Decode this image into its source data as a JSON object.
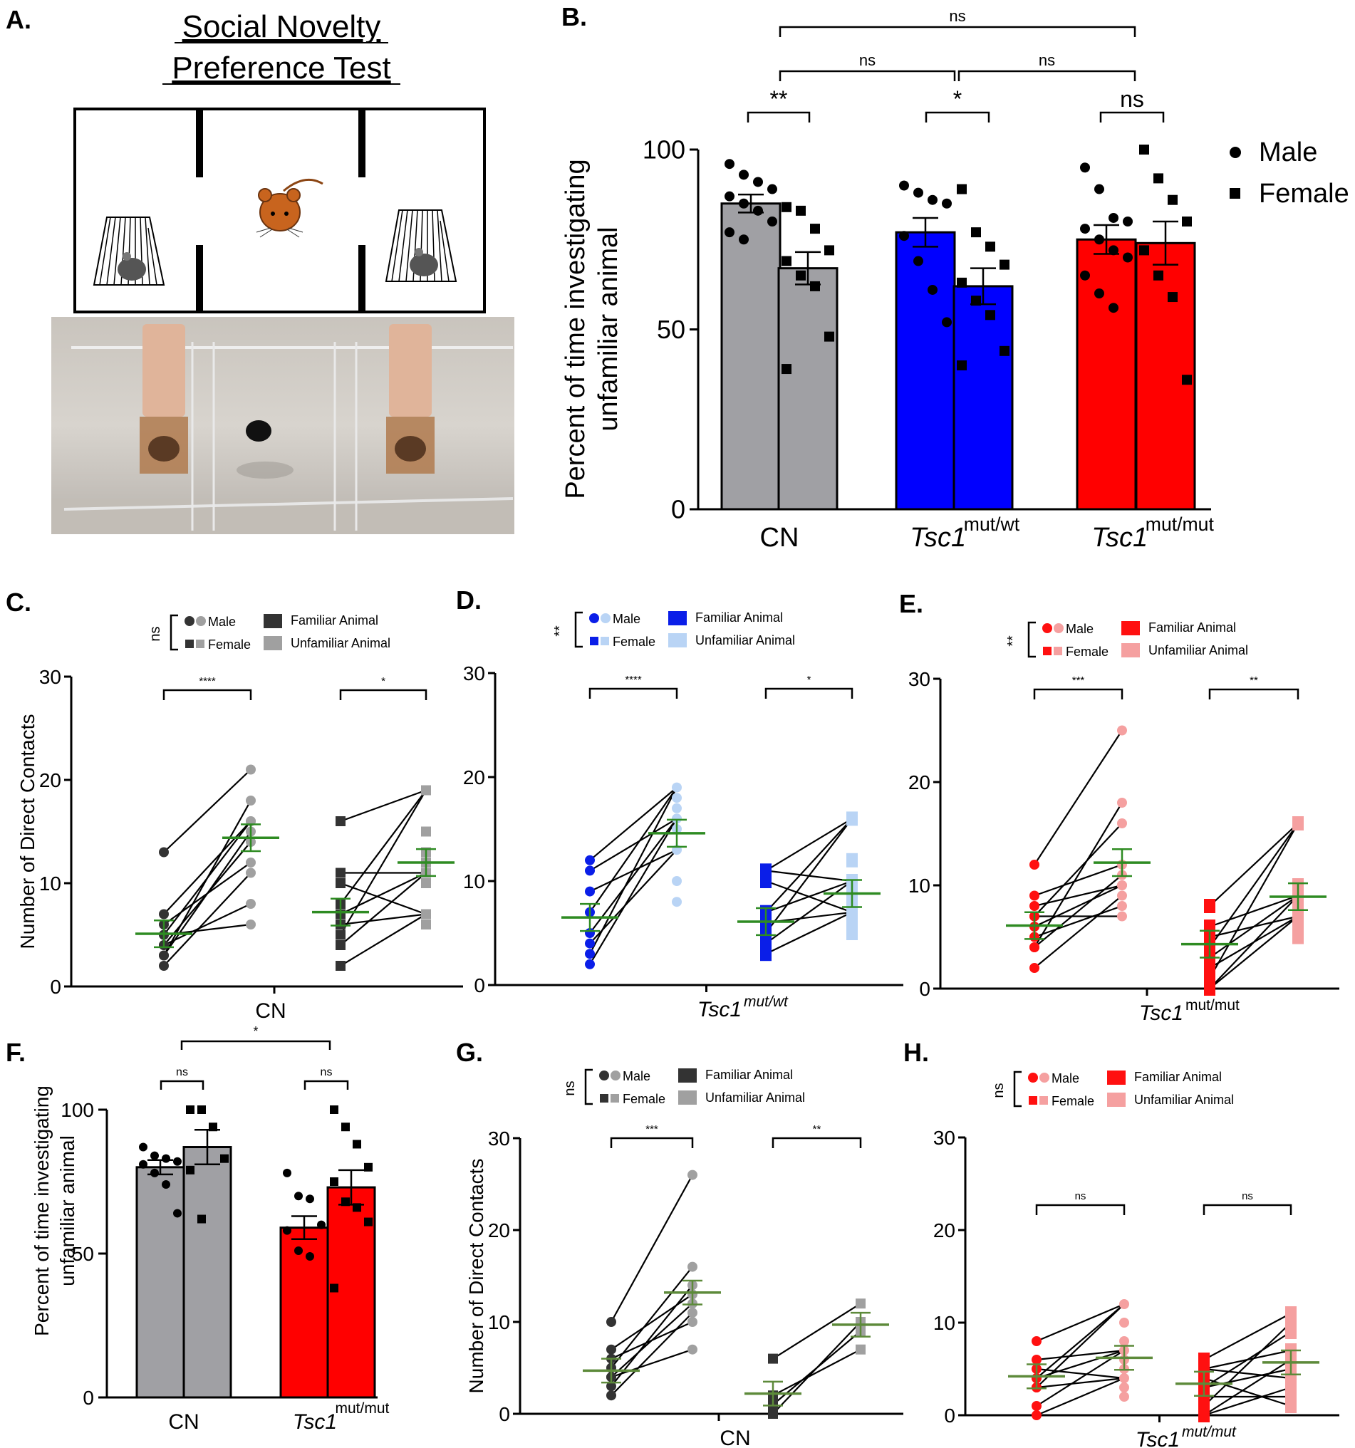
{
  "panel_labels": [
    "A.",
    "B.",
    "C.",
    "D.",
    "E.",
    "F.",
    "G.",
    "H."
  ],
  "panel_a": {
    "title_line1": "Social Novelty",
    "title_line2": "Preference Test"
  },
  "colors": {
    "cn_dark": "#333333",
    "cn_light": "#a0a0a0",
    "cn_bar": "#a0a0a4",
    "het_dark": "#0a1ee8",
    "het_light": "#b9d4f5",
    "het_bar": "#0000ff",
    "mut_dark": "#ff1010",
    "mut_light": "#f5a0a0",
    "mut_bar": "#ff0000",
    "mean": "#2e8b22",
    "mean_dim": "#5d8a3a"
  },
  "chart_data": [
    {
      "id": "B",
      "type": "bar",
      "ylabel_line1": "Percent of time investigating",
      "ylabel_line2": "unfamiliar animal",
      "ylim": [
        0,
        100
      ],
      "yticks": [
        "0",
        "50",
        "100"
      ],
      "groups": [
        {
          "label": "CN",
          "sup": ""
        },
        {
          "label": "Tsc1",
          "sup": "mut/wt"
        },
        {
          "label": "Tsc1",
          "sup": "mut/mut"
        }
      ],
      "legend": [
        {
          "name": "Male",
          "marker": "circle"
        },
        {
          "name": "Female",
          "marker": "square"
        }
      ],
      "series": [
        {
          "group": "CN",
          "sex": "Male",
          "mean": 85,
          "sem": 2.5,
          "points": [
            96,
            93,
            91,
            89,
            87,
            85,
            83,
            80,
            77,
            75
          ]
        },
        {
          "group": "CN",
          "sex": "Female",
          "mean": 67,
          "sem": 4.5,
          "points": [
            84,
            83,
            78,
            72,
            69,
            65,
            62,
            48,
            39
          ]
        },
        {
          "group": "Tsc1 mut/wt",
          "sex": "Male",
          "mean": 77,
          "sem": 4,
          "points": [
            90,
            88,
            86,
            85,
            76,
            69,
            61,
            52
          ]
        },
        {
          "group": "Tsc1 mut/wt",
          "sex": "Female",
          "mean": 62,
          "sem": 5,
          "points": [
            89,
            77,
            73,
            68,
            63,
            58,
            54,
            44,
            40
          ]
        },
        {
          "group": "Tsc1 mut/mut",
          "sex": "Male",
          "mean": 75,
          "sem": 4,
          "points": [
            95,
            89,
            81,
            80,
            78,
            75,
            72,
            70,
            65,
            60,
            56
          ]
        },
        {
          "group": "Tsc1 mut/mut",
          "sex": "Female",
          "mean": 74,
          "sem": 6,
          "points": [
            100,
            92,
            86,
            80,
            72,
            65,
            59,
            36
          ]
        }
      ],
      "significance": [
        {
          "label": "**",
          "between": "CN Male vs CN Female"
        },
        {
          "label": "*",
          "between": "Tsc1 mut/wt Male vs Female"
        },
        {
          "label": "ns",
          "between": "Tsc1 mut/mut Male vs Female"
        },
        {
          "label": "ns",
          "between": "CN vs Tsc1 mut/wt"
        },
        {
          "label": "ns",
          "between": "Tsc1 mut/wt vs Tsc1 mut/mut"
        },
        {
          "label": "ns",
          "between": "CN vs Tsc1 mut/mut"
        }
      ]
    },
    {
      "id": "C",
      "type": "paired-scatter",
      "ylabel": "Number of Direct Contacts",
      "xlabel": "CN",
      "xlabel_sup": "",
      "ylim": [
        0,
        30
      ],
      "yticks": [
        "0",
        "10",
        "20",
        "30"
      ],
      "legend": {
        "sex_sig": "ns",
        "male": "Male",
        "female": "Female",
        "familiar": "Familiar Animal",
        "unfamiliar": "Unfamiliar Animal"
      },
      "male": {
        "familiar": [
          13,
          7,
          6,
          5,
          5,
          4,
          4,
          3,
          3,
          2
        ],
        "unfamiliar": [
          21,
          18,
          16,
          16,
          15,
          14,
          12,
          11,
          8,
          6
        ],
        "mean_familiar": 5.1,
        "mean_unfamiliar": 14.4,
        "sig": "****"
      },
      "female": {
        "familiar": [
          16,
          11,
          10,
          8,
          7,
          6,
          5,
          4,
          2
        ],
        "unfamiliar": [
          19,
          15,
          13,
          11,
          12,
          10,
          7,
          7,
          6
        ],
        "mean_familiar": 7.2,
        "mean_unfamiliar": 12,
        "sig": "*"
      }
    },
    {
      "id": "D",
      "type": "paired-scatter",
      "ylabel": "",
      "xlabel": "Tsc1",
      "xlabel_sup": "mut/wt",
      "ylim": [
        0,
        30
      ],
      "yticks": [
        "0",
        "10",
        "20",
        "30"
      ],
      "legend": {
        "sex_sig": "**",
        "male": "Male",
        "female": "Female",
        "familiar": "Familiar Animal",
        "unfamiliar": "Unfamiliar Animal"
      },
      "male": {
        "familiar": [
          12,
          11,
          9,
          7,
          5,
          4,
          3,
          2
        ],
        "unfamiliar": [
          19,
          18,
          17,
          16,
          16,
          15,
          13,
          10,
          8
        ],
        "mean_familiar": 6.5,
        "mean_unfamiliar": 14.6,
        "sig": "****"
      },
      "female": {
        "familiar": [
          11,
          11,
          10,
          7,
          7,
          6,
          5,
          4,
          3
        ],
        "unfamiliar": [
          16,
          12,
          10,
          10,
          9,
          8,
          7,
          6,
          5
        ],
        "mean_familiar": 6.1,
        "mean_unfamiliar": 8.8,
        "sig": "*"
      }
    },
    {
      "id": "E",
      "type": "paired-scatter",
      "ylabel": "",
      "xlabel": "Tsc1",
      "xlabel_sup": "mut/mut",
      "ylim": [
        0,
        30
      ],
      "yticks": [
        "0",
        "10",
        "20",
        "30"
      ],
      "legend": {
        "sex_sig": "**",
        "male": "Male",
        "female": "Female",
        "familiar": "Familiar Animal",
        "unfamiliar": "Unfamiliar Animal"
      },
      "male": {
        "familiar": [
          12,
          9,
          8,
          7,
          7,
          6,
          5,
          4,
          4,
          2
        ],
        "unfamiliar": [
          25,
          18,
          16,
          12,
          11,
          10,
          10,
          9,
          8,
          7
        ],
        "mean_familiar": 6.1,
        "mean_unfamiliar": 12.2,
        "sig": "***"
      },
      "female": {
        "familiar": [
          8,
          6,
          5,
          4,
          3,
          2,
          1,
          0,
          0
        ],
        "unfamiliar": [
          16,
          10,
          9,
          9,
          8,
          8,
          7,
          6,
          5
        ],
        "mean_familiar": 4.3,
        "mean_unfamiliar": 8.9,
        "sig": "**"
      }
    },
    {
      "id": "F",
      "type": "bar",
      "ylabel_line1": "Percent of time investigating",
      "ylabel_line2": "unfamiliar animal",
      "ylim": [
        0,
        100
      ],
      "yticks": [
        "0",
        "50",
        "100"
      ],
      "groups": [
        {
          "label": "CN",
          "sup": ""
        },
        {
          "label": "Tsc1",
          "sup": "mut/mut"
        }
      ],
      "series": [
        {
          "group": "CN",
          "sex": "Male",
          "mean": 80,
          "sem": 2.5,
          "points": [
            87,
            84,
            83,
            82,
            81,
            78,
            74,
            64
          ]
        },
        {
          "group": "CN",
          "sex": "Female",
          "mean": 87,
          "sem": 6,
          "points": [
            100,
            100,
            94,
            83,
            79,
            62
          ]
        },
        {
          "group": "Tsc1 mut/mut",
          "sex": "Male",
          "mean": 59,
          "sem": 4,
          "points": [
            78,
            70,
            69,
            60,
            58,
            51,
            49
          ]
        },
        {
          "group": "Tsc1 mut/mut",
          "sex": "Female",
          "mean": 73,
          "sem": 6,
          "points": [
            100,
            94,
            88,
            80,
            75,
            68,
            66,
            61,
            38
          ]
        }
      ],
      "significance": [
        {
          "label": "ns",
          "between": "CN Male vs Female"
        },
        {
          "label": "ns",
          "between": "Tsc1 mut/mut Male vs Female"
        },
        {
          "label": "*",
          "between": "CN vs Tsc1 mut/mut"
        }
      ]
    },
    {
      "id": "G",
      "type": "paired-scatter",
      "ylabel": "Number of Direct Contacts",
      "xlabel": "CN",
      "xlabel_sup": "",
      "ylim": [
        0,
        30
      ],
      "yticks": [
        "0",
        "10",
        "20",
        "30"
      ],
      "legend": {
        "sex_sig": "ns",
        "male": "Male",
        "female": "Female",
        "familiar": "Familiar Animal",
        "unfamiliar": "Unfamiliar Animal"
      },
      "male": {
        "familiar": [
          10,
          7,
          6,
          5,
          4,
          4,
          3,
          2
        ],
        "unfamiliar": [
          26,
          16,
          14,
          13,
          12,
          11,
          10,
          7
        ],
        "mean_familiar": 4.7,
        "mean_unfamiliar": 13.2,
        "sig": "***"
      },
      "female": {
        "familiar": [
          6,
          2,
          1,
          0
        ],
        "unfamiliar": [
          12,
          10,
          9,
          7
        ],
        "mean_familiar": 2.2,
        "mean_unfamiliar": 9.7,
        "sig": "**"
      }
    },
    {
      "id": "H",
      "type": "paired-scatter",
      "ylabel": "",
      "xlabel": "Tsc1",
      "xlabel_sup": "mut/mut",
      "ylim": [
        0,
        30
      ],
      "yticks": [
        "0",
        "10",
        "20",
        "30"
      ],
      "legend": {
        "sex_sig": "ns",
        "male": "Male",
        "female": "Female",
        "familiar": "Familiar Animal",
        "unfamiliar": "Unfamiliar Animal"
      },
      "male": {
        "familiar": [
          8,
          6,
          5,
          4,
          4,
          3,
          3,
          1,
          0
        ],
        "unfamiliar": [
          12,
          10,
          8,
          7,
          6,
          5,
          4,
          3,
          2
        ],
        "mean_familiar": 4.2,
        "mean_unfamiliar": 6.2,
        "sig": "ns"
      },
      "female": {
        "familiar": [
          6,
          5,
          5,
          4,
          3,
          3,
          2,
          1,
          0,
          0
        ],
        "unfamiliar": [
          11,
          10,
          9,
          7,
          6,
          5,
          4,
          3,
          2,
          1
        ],
        "mean_familiar": 3.4,
        "mean_unfamiliar": 5.7,
        "sig": "ns"
      }
    }
  ]
}
